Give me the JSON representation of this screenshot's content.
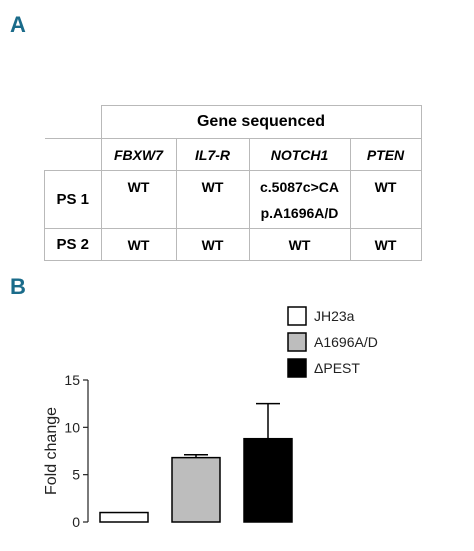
{
  "panels": {
    "a": "A",
    "b": "B"
  },
  "table": {
    "header": "Gene sequenced",
    "columns": [
      "FBXW7",
      "IL7-R",
      "NOTCH1",
      "PTEN"
    ],
    "rows": [
      {
        "label": "PS 1",
        "cells": [
          "WT",
          "WT",
          "c.5087c>CA",
          "WT"
        ],
        "extra": "p.A1696A/D"
      },
      {
        "label": "PS 2",
        "cells": [
          "WT",
          "WT",
          "WT",
          "WT"
        ]
      }
    ]
  },
  "chart_data": {
    "type": "bar",
    "categories": [
      "JH23a",
      "A1696A/D",
      "ΔPEST"
    ],
    "values": [
      1.0,
      6.8,
      8.8
    ],
    "errors": [
      0,
      0.3,
      3.7
    ],
    "colors": [
      "#ffffff",
      "#bdbdbd",
      "#000000"
    ],
    "ylabel": "Fold change",
    "ylim": [
      0,
      15
    ],
    "yticks": [
      0,
      5,
      10,
      15
    ],
    "legend": [
      {
        "label": "JH23a",
        "color": "#ffffff"
      },
      {
        "label": "A1696A/D",
        "color": "#bdbdbd"
      },
      {
        "label": "ΔPEST",
        "color": "#000000"
      }
    ],
    "legend_position": "top-right",
    "grid": false
  }
}
